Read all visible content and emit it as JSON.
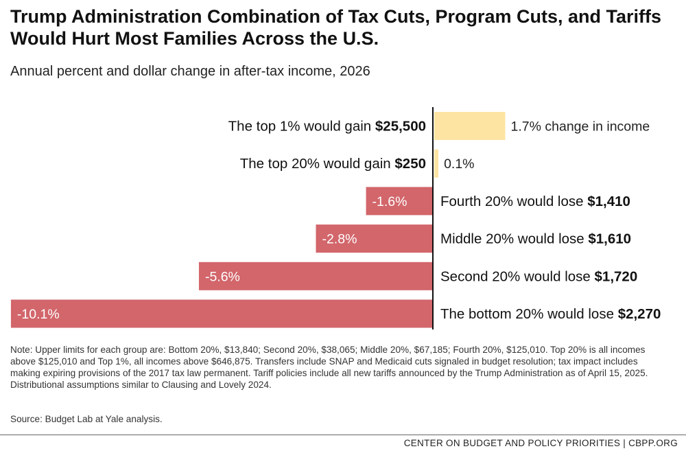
{
  "title": "Trump Administration Combination of Tax Cuts, Program Cuts, and Tariffs Would Hurt Most Families Across the U.S.",
  "subtitle": "Annual percent and dollar change in after-tax income, 2026",
  "note": "Note: Upper limits for each group are: Bottom 20%, $13,840; Second 20%, $38,065; Middle 20%, $67,185; Fourth 20%, $125,010. Top 20% is all incomes above $125,010 and Top 1%, all incomes above $646,875. Transfers include SNAP and Medicaid cuts signaled in budget resolution; tax impact includes making expiring provisions of the 2017 tax law permanent. Tariff policies include all new tariffs announced by the Trump Administration as of April 15, 2025. Distributional assumptions similar to Clausing and Lovely 2024.",
  "source": "Source: Budget Lab at Yale analysis.",
  "footer": "CENTER ON BUDGET AND POLICY PRIORITIES | CBPP.ORG",
  "colors": {
    "gain": "#fde4a3",
    "loss": "#d2666b",
    "axis": "#111111"
  },
  "chart_data": {
    "type": "bar",
    "orientation": "horizontal",
    "categories": [
      "The top 1%",
      "The top 20%",
      "Fourth 20%",
      "Middle 20%",
      "Second 20%",
      "The bottom 20%"
    ],
    "values": [
      1.7,
      0.1,
      -1.6,
      -2.8,
      -5.6,
      -10.1
    ],
    "value_labels": [
      "1.7% change in income",
      "0.1%",
      "-1.6%",
      "-2.8%",
      "-5.6%",
      "-10.1%"
    ],
    "group_labels": [
      {
        "prefix": "The top 1% would gain ",
        "amount": "$25,500"
      },
      {
        "prefix": "The top 20% would gain ",
        "amount": "$250"
      },
      {
        "prefix": "Fourth 20% would lose ",
        "amount": "$1,410"
      },
      {
        "prefix": "Middle 20% would lose ",
        "amount": "$1,610"
      },
      {
        "prefix": "Second 20% would lose ",
        "amount": "$1,720"
      },
      {
        "prefix": "The bottom 20% would lose ",
        "amount": "$2,270"
      }
    ],
    "dollar_change": [
      25500,
      250,
      -1410,
      -1610,
      -1720,
      -2270
    ],
    "grid": false
  }
}
